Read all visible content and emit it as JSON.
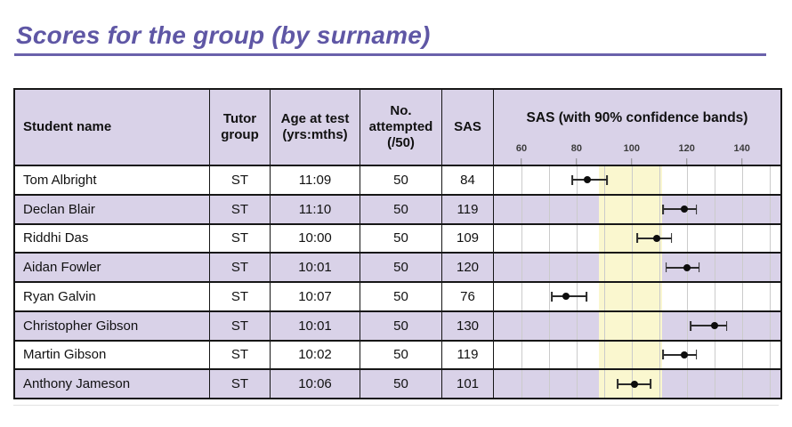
{
  "page": {
    "title": "Scores for the group (by surname)"
  },
  "colors": {
    "accent_purple": "#5f57a5",
    "underline_purple": "#6a61ab",
    "row_lavender": "#d9d2e8",
    "band_yellow": "#faf7cf",
    "gridline_gray": "#cbcbcb",
    "border_black": "#161616"
  },
  "table": {
    "headers": {
      "student_name": "Student name",
      "tutor_group": "Tutor group",
      "age_at_test": "Age at test (yrs:mths)",
      "no_attempted": "No. attempted (/50)",
      "sas": "SAS",
      "sas_bands": "SAS (with 90% confidence bands)"
    },
    "axis": {
      "min": 50,
      "max": 154,
      "ticks": [
        60,
        80,
        100,
        120,
        140
      ],
      "grid_from": 60,
      "grid_to": 150,
      "grid_step": 10
    },
    "band": {
      "from": 88,
      "to": 111
    },
    "rows": [
      {
        "name": "Tom Albright",
        "tutor_group": "ST",
        "age_at_test": "11:09",
        "attempted": "50",
        "sas": 84,
        "ci_low": 78.5,
        "ci_high": 91
      },
      {
        "name": "Declan Blair",
        "tutor_group": "ST",
        "age_at_test": "11:10",
        "attempted": "50",
        "sas": 119,
        "ci_low": 111.5,
        "ci_high": 123.5
      },
      {
        "name": "Riddhi Das",
        "tutor_group": "ST",
        "age_at_test": "10:00",
        "attempted": "50",
        "sas": 109,
        "ci_low": 102,
        "ci_high": 114.5
      },
      {
        "name": "Aidan Fowler",
        "tutor_group": "ST",
        "age_at_test": "10:01",
        "attempted": "50",
        "sas": 120,
        "ci_low": 112.5,
        "ci_high": 124.5
      },
      {
        "name": "Ryan Galvin",
        "tutor_group": "ST",
        "age_at_test": "10:07",
        "attempted": "50",
        "sas": 76,
        "ci_low": 71,
        "ci_high": 83.5
      },
      {
        "name": "Christopher Gibson",
        "tutor_group": "ST",
        "age_at_test": "10:01",
        "attempted": "50",
        "sas": 130,
        "ci_low": 121.5,
        "ci_high": 134.5
      },
      {
        "name": "Martin Gibson",
        "tutor_group": "ST",
        "age_at_test": "10:02",
        "attempted": "50",
        "sas": 119,
        "ci_low": 111.5,
        "ci_high": 123.5
      },
      {
        "name": "Anthony Jameson",
        "tutor_group": "ST",
        "age_at_test": "10:06",
        "attempted": "50",
        "sas": 101,
        "ci_low": 95,
        "ci_high": 107
      }
    ]
  },
  "chart_data": {
    "type": "scatter",
    "title": "SAS (with 90% confidence bands)",
    "categories": [
      "Tom Albright",
      "Declan Blair",
      "Riddhi Das",
      "Aidan Fowler",
      "Ryan Galvin",
      "Christopher Gibson",
      "Martin Gibson",
      "Anthony Jameson"
    ],
    "series": [
      {
        "name": "SAS",
        "values": [
          84,
          119,
          109,
          120,
          76,
          130,
          119,
          101
        ]
      }
    ],
    "error_low": [
      78.5,
      111.5,
      102,
      112.5,
      71,
      121.5,
      111.5,
      95
    ],
    "error_high": [
      91,
      123.5,
      114.5,
      124.5,
      83.5,
      134.5,
      123.5,
      107
    ],
    "xlim": [
      50,
      154
    ],
    "x_ticks": [
      60,
      80,
      100,
      120,
      140
    ],
    "grid": "vertical, every 10 units",
    "highlight_band": {
      "from": 88,
      "to": 111,
      "color": "#faf7cf"
    },
    "legend": "none",
    "orientation": "horizontal dot plot, one row per student"
  }
}
